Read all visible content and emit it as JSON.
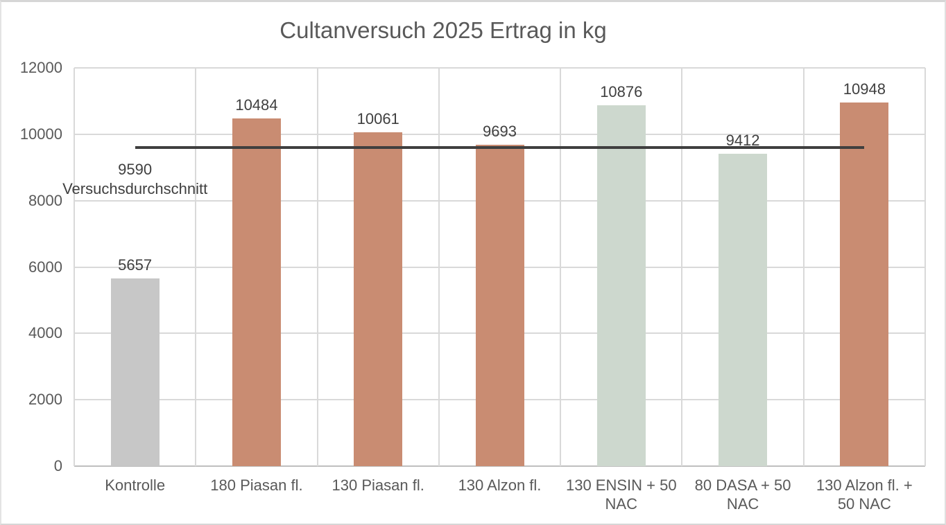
{
  "chart_data": {
    "type": "bar",
    "title": "Cultanversuch 2025 Ertrag in kg",
    "xlabel": "",
    "ylabel": "",
    "categories": [
      "Kontrolle",
      "180 Piasan fl.",
      "130 Piasan fl.",
      "130 Alzon fl.",
      "130 ENSIN + 50 NAC",
      "80 DASA + 50 NAC",
      "130 Alzon fl. + 50 NAC"
    ],
    "category_lines": [
      [
        "Kontrolle"
      ],
      [
        "180 Piasan fl."
      ],
      [
        "130 Piasan fl."
      ],
      [
        "130 Alzon fl."
      ],
      [
        "130 ENSIN + 50",
        "NAC"
      ],
      [
        "80 DASA + 50",
        "NAC"
      ],
      [
        "130 Alzon fl. +",
        "50 NAC"
      ]
    ],
    "values": [
      5657,
      10484,
      10061,
      9693,
      10876,
      9412,
      10948
    ],
    "data_labels": [
      "5657",
      "10484",
      "10061",
      "9693",
      "10876",
      "9412",
      "10948"
    ],
    "bar_colors": [
      "#C7C7C7",
      "#C98C72",
      "#C98C72",
      "#C98C72",
      "#CDD8CE",
      "#CDD8CE",
      "#C98C72"
    ],
    "average_line": {
      "value": 9590,
      "label": "9590",
      "series_name": "Versuchsdurchschnitt",
      "color": "#3F3F3F"
    },
    "yticks": [
      0,
      2000,
      4000,
      6000,
      8000,
      10000,
      12000
    ],
    "ylim": [
      0,
      12000
    ],
    "grid": true,
    "legend": "none",
    "colors": {
      "title_text": "#595959",
      "axis_text": "#595959",
      "data_label_text": "#3F3F3F",
      "gridline": "#D9D9D9",
      "axis_line": "#BFBFBF",
      "background": "#FFFFFF",
      "control_bar": "#C7C7C7",
      "treatment_bar": "#C98C72",
      "nac_bar": "#CDD8CE"
    }
  }
}
